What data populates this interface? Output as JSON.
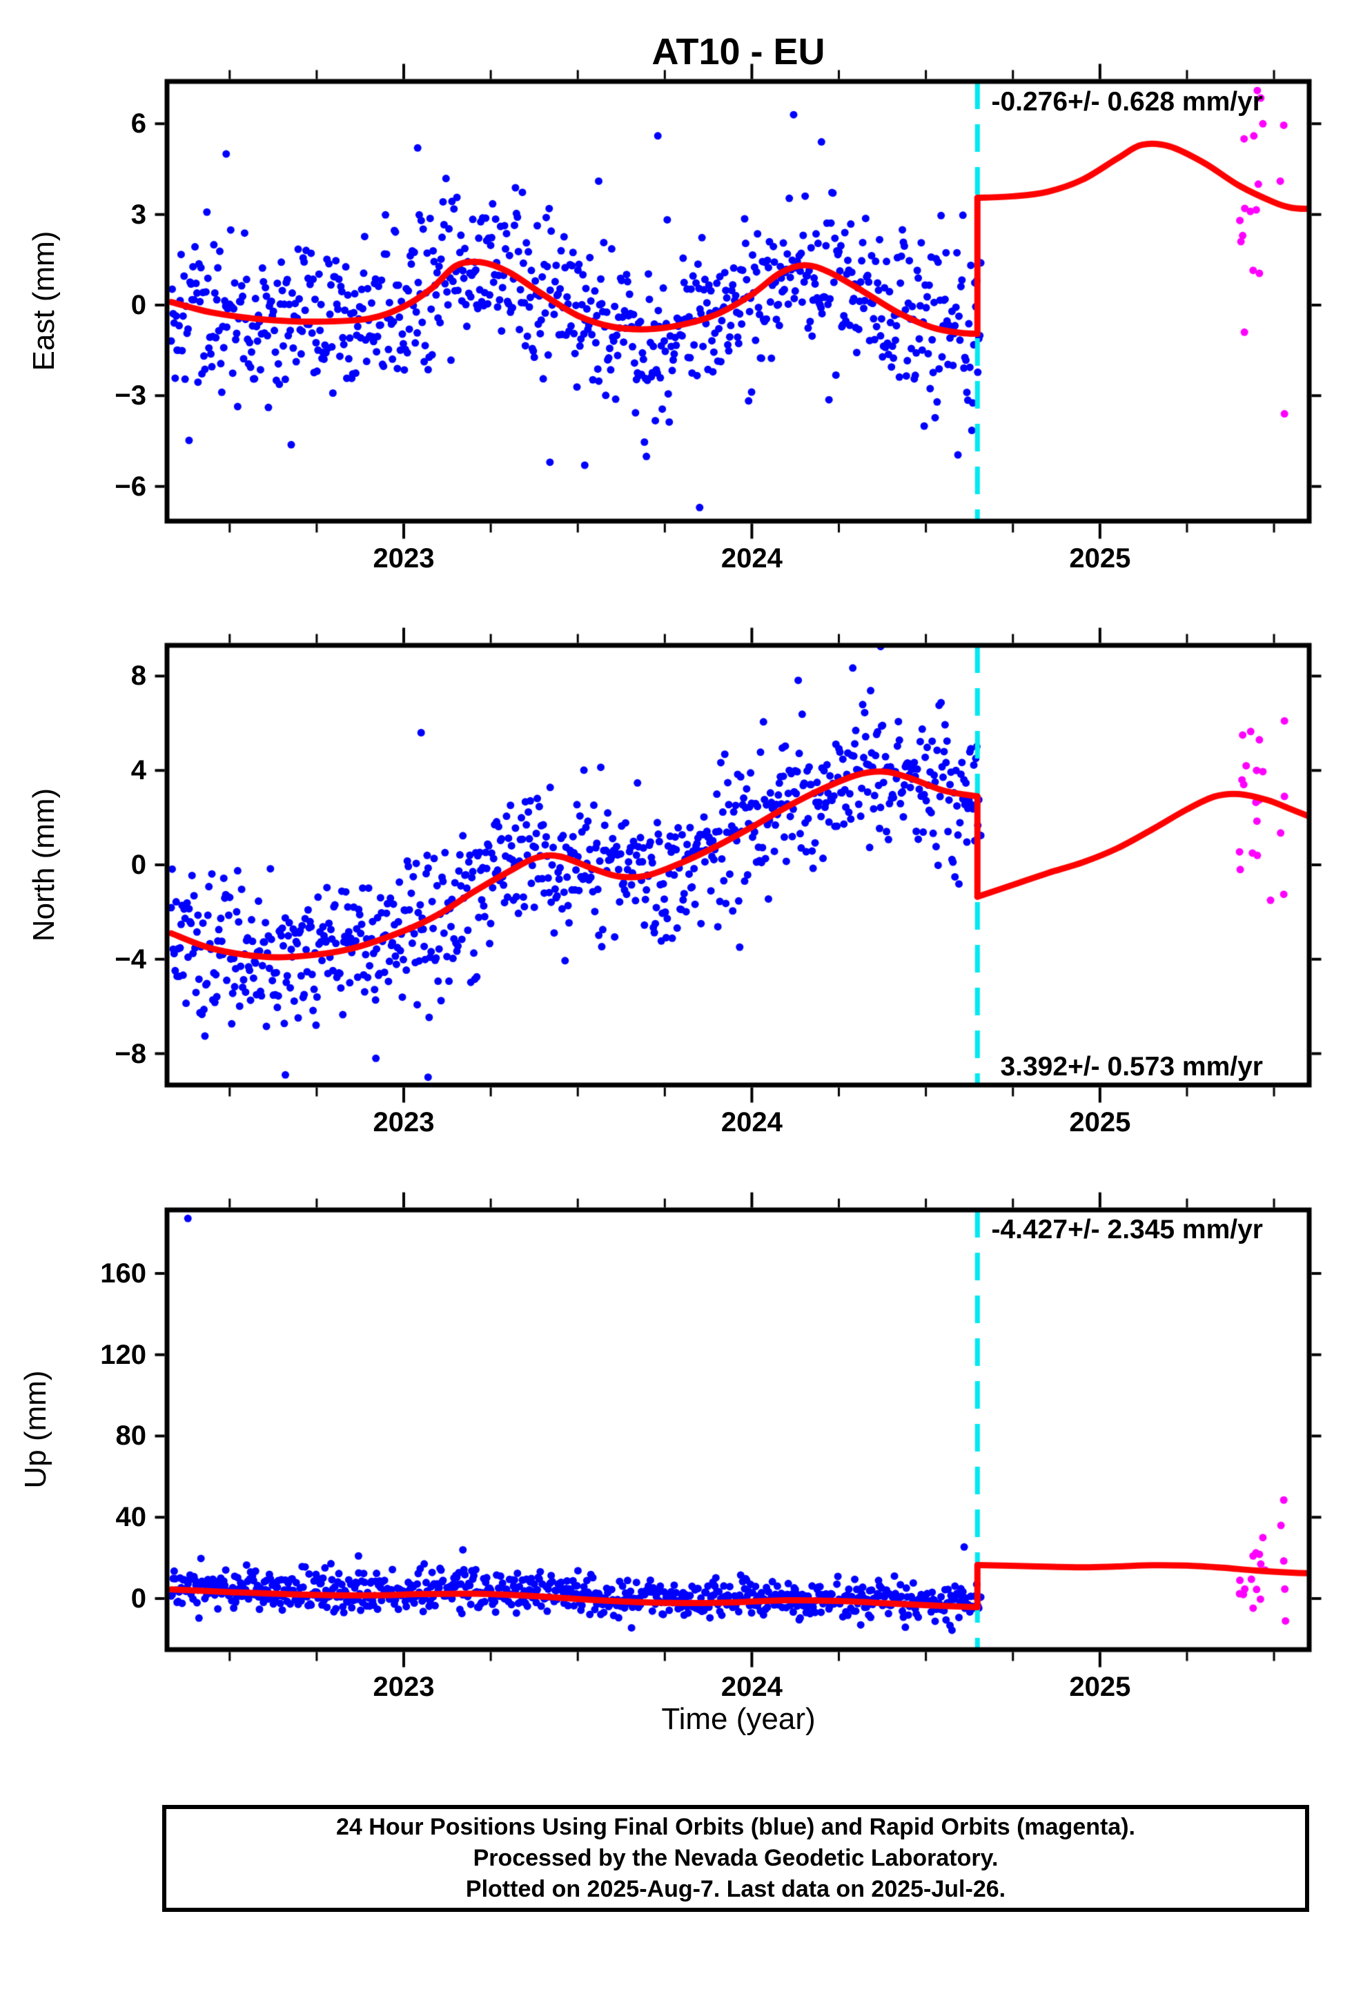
{
  "colors": {
    "final_orbit": "#0000ff",
    "rapid_orbit": "#ff00ff",
    "model_fit": "#ff0000",
    "event_line": "#00e8f0",
    "frame": "#000000",
    "background": "#ffffff"
  },
  "caption": {
    "lines": [
      "24 Hour Positions Using Final Orbits (blue) and Rapid Orbits (magenta).",
      "Processed by the Nevada Geodetic Laboratory.",
      "Plotted on 2025-Aug-7. Last data on 2025-Jul-26."
    ]
  },
  "chart_data": {
    "type": "scatter",
    "title": "AT10 - EU",
    "x": {
      "label": "Time (year)",
      "lim": [
        2022.32,
        2025.601
      ],
      "ticks": [
        {
          "v": 2023,
          "label": "2023"
        },
        {
          "v": 2024,
          "label": "2024"
        },
        {
          "v": 2025,
          "label": "2025"
        }
      ],
      "minor_tick_step": 0.25
    },
    "event_line_x": 2024.648,
    "legend": {
      "final_orbits": "blue",
      "rapid_orbits": "magenta"
    },
    "panels": [
      {
        "id": "east",
        "ylabel": "East (mm)",
        "ylim": [
          -7.15,
          7.4
        ],
        "yticks": [
          {
            "v": 6,
            "label": "6"
          },
          {
            "v": 3,
            "label": "3"
          },
          {
            "v": 0,
            "label": "0"
          },
          {
            "v": -3,
            "label": "−3"
          },
          {
            "v": -6,
            "label": "−6"
          }
        ],
        "annotation": {
          "text": "-0.276+/- 0.628 mm/yr",
          "corner": "top-right"
        },
        "velocity_mm_per_yr": -0.276,
        "velocity_sigma": 0.628,
        "model_pre": [
          [
            2022.332,
            0.1
          ],
          [
            2022.45,
            -0.25
          ],
          [
            2022.6,
            -0.48
          ],
          [
            2022.75,
            -0.55
          ],
          [
            2022.9,
            -0.45
          ],
          [
            2023.0,
            -0.05
          ],
          [
            2023.08,
            0.55
          ],
          [
            2023.15,
            1.3
          ],
          [
            2023.22,
            1.42
          ],
          [
            2023.3,
            1.1
          ],
          [
            2023.4,
            0.35
          ],
          [
            2023.5,
            -0.35
          ],
          [
            2023.6,
            -0.72
          ],
          [
            2023.7,
            -0.8
          ],
          [
            2023.8,
            -0.65
          ],
          [
            2023.9,
            -0.3
          ],
          [
            2024.0,
            0.35
          ],
          [
            2024.08,
            1.05
          ],
          [
            2024.15,
            1.32
          ],
          [
            2024.22,
            1.1
          ],
          [
            2024.32,
            0.45
          ],
          [
            2024.42,
            -0.25
          ],
          [
            2024.52,
            -0.75
          ],
          [
            2024.6,
            -0.92
          ],
          [
            2024.648,
            -0.95
          ]
        ],
        "model_post": [
          [
            2024.648,
            3.55
          ],
          [
            2024.75,
            3.6
          ],
          [
            2024.85,
            3.75
          ],
          [
            2024.95,
            4.15
          ],
          [
            2025.05,
            4.85
          ],
          [
            2025.12,
            5.3
          ],
          [
            2025.2,
            5.25
          ],
          [
            2025.3,
            4.7
          ],
          [
            2025.4,
            3.95
          ],
          [
            2025.5,
            3.4
          ],
          [
            2025.55,
            3.22
          ],
          [
            2025.601,
            3.18
          ]
        ],
        "scatter": {
          "seed": 42,
          "sigma": 1.35,
          "mean_offset": 0,
          "t_start": 2022.332,
          "t_end": 2024.66,
          "step": 0.00285
        },
        "outliers": [
          [
            2022.49,
            5.0
          ],
          [
            2023.04,
            5.2
          ],
          [
            2023.56,
            4.1
          ],
          [
            2023.73,
            5.6
          ],
          [
            2024.12,
            6.3
          ],
          [
            2024.2,
            5.4
          ],
          [
            2023.42,
            -5.2
          ],
          [
            2023.52,
            -5.3
          ],
          [
            2023.85,
            -6.7
          ]
        ],
        "rapid": [
          [
            2025.452,
            7.1
          ],
          [
            2025.462,
            6.85
          ],
          [
            2025.468,
            6.0
          ],
          [
            2025.442,
            5.6
          ],
          [
            2025.414,
            5.5
          ],
          [
            2025.528,
            5.95
          ],
          [
            2025.455,
            4.0
          ],
          [
            2025.518,
            4.1
          ],
          [
            2025.416,
            3.2
          ],
          [
            2025.432,
            3.1
          ],
          [
            2025.449,
            3.15
          ],
          [
            2025.402,
            2.8
          ],
          [
            2025.41,
            2.3
          ],
          [
            2025.405,
            2.1
          ],
          [
            2025.44,
            1.15
          ],
          [
            2025.458,
            1.05
          ],
          [
            2025.415,
            -0.9
          ],
          [
            2025.53,
            -3.6
          ]
        ]
      },
      {
        "id": "north",
        "ylabel": "North (mm)",
        "ylim": [
          -9.33,
          9.3
        ],
        "yticks": [
          {
            "v": 8,
            "label": "8"
          },
          {
            "v": 4,
            "label": "4"
          },
          {
            "v": 0,
            "label": "0"
          },
          {
            "v": -4,
            "label": "−4"
          },
          {
            "v": -8,
            "label": "−8"
          }
        ],
        "annotation": {
          "text": "3.392+/- 0.573 mm/yr",
          "corner": "bottom-right"
        },
        "velocity_mm_per_yr": 3.392,
        "velocity_sigma": 0.573,
        "model_pre": [
          [
            2022.332,
            -2.9
          ],
          [
            2022.45,
            -3.55
          ],
          [
            2022.6,
            -3.9
          ],
          [
            2022.72,
            -3.85
          ],
          [
            2022.85,
            -3.55
          ],
          [
            2023.0,
            -2.8
          ],
          [
            2023.1,
            -2.1
          ],
          [
            2023.2,
            -1.15
          ],
          [
            2023.3,
            -0.3
          ],
          [
            2023.38,
            0.3
          ],
          [
            2023.45,
            0.35
          ],
          [
            2023.55,
            -0.2
          ],
          [
            2023.62,
            -0.5
          ],
          [
            2023.7,
            -0.45
          ],
          [
            2023.8,
            0.1
          ],
          [
            2023.9,
            0.8
          ],
          [
            2024.0,
            1.6
          ],
          [
            2024.1,
            2.45
          ],
          [
            2024.2,
            3.2
          ],
          [
            2024.3,
            3.8
          ],
          [
            2024.38,
            3.95
          ],
          [
            2024.45,
            3.7
          ],
          [
            2024.55,
            3.15
          ],
          [
            2024.648,
            2.9
          ]
        ],
        "model_post": [
          [
            2024.648,
            -1.35
          ],
          [
            2024.75,
            -0.85
          ],
          [
            2024.85,
            -0.35
          ],
          [
            2024.95,
            0.1
          ],
          [
            2025.05,
            0.7
          ],
          [
            2025.15,
            1.5
          ],
          [
            2025.25,
            2.35
          ],
          [
            2025.33,
            2.9
          ],
          [
            2025.4,
            3.0
          ],
          [
            2025.48,
            2.75
          ],
          [
            2025.55,
            2.35
          ],
          [
            2025.601,
            2.05
          ]
        ],
        "scatter": {
          "seed": 1337,
          "sigma": 1.6,
          "mean_offset": 0,
          "t_start": 2022.332,
          "t_end": 2024.66,
          "step": 0.00285
        },
        "outliers": [
          [
            2023.05,
            5.6
          ],
          [
            2024.37,
            9.25
          ],
          [
            2022.92,
            -8.2
          ],
          [
            2022.66,
            -8.9
          ],
          [
            2023.07,
            -9.0
          ]
        ],
        "rapid": [
          [
            2025.53,
            6.1
          ],
          [
            2025.41,
            5.5
          ],
          [
            2025.433,
            5.65
          ],
          [
            2025.458,
            5.3
          ],
          [
            2025.42,
            4.2
          ],
          [
            2025.45,
            4.0
          ],
          [
            2025.468,
            3.95
          ],
          [
            2025.408,
            3.6
          ],
          [
            2025.413,
            3.4
          ],
          [
            2025.458,
            2.75
          ],
          [
            2025.53,
            2.9
          ],
          [
            2025.448,
            2.65
          ],
          [
            2025.451,
            1.85
          ],
          [
            2025.519,
            1.35
          ],
          [
            2025.401,
            0.55
          ],
          [
            2025.438,
            0.5
          ],
          [
            2025.452,
            0.4
          ],
          [
            2025.403,
            -0.2
          ],
          [
            2025.528,
            -1.25
          ],
          [
            2025.49,
            -1.5
          ]
        ]
      },
      {
        "id": "up",
        "ylabel": "Up (mm)",
        "ylim": [
          -25.1,
          191.2
        ],
        "yticks": [
          {
            "v": 160,
            "label": "160"
          },
          {
            "v": 120,
            "label": "120"
          },
          {
            "v": 80,
            "label": "80"
          },
          {
            "v": 40,
            "label": "40"
          },
          {
            "v": 0,
            "label": "0"
          }
        ],
        "annotation": {
          "text": "-4.427+/- 2.345 mm/yr",
          "corner": "top-right"
        },
        "velocity_mm_per_yr": -4.427,
        "velocity_sigma": 2.345,
        "model_pre": [
          [
            2022.332,
            4.5
          ],
          [
            2022.5,
            3.2
          ],
          [
            2022.7,
            2.0
          ],
          [
            2022.9,
            1.6
          ],
          [
            2023.05,
            2.2
          ],
          [
            2023.2,
            2.4
          ],
          [
            2023.35,
            1.5
          ],
          [
            2023.5,
            -0.2
          ],
          [
            2023.65,
            -1.6
          ],
          [
            2023.8,
            -2.2
          ],
          [
            2023.95,
            -1.8
          ],
          [
            2024.1,
            -0.8
          ],
          [
            2024.25,
            -1.2
          ],
          [
            2024.4,
            -2.4
          ],
          [
            2024.55,
            -3.6
          ],
          [
            2024.648,
            -4.2
          ]
        ],
        "model_post": [
          [
            2024.648,
            16.5
          ],
          [
            2024.8,
            15.9
          ],
          [
            2024.95,
            15.4
          ],
          [
            2025.05,
            15.8
          ],
          [
            2025.15,
            16.4
          ],
          [
            2025.25,
            16.2
          ],
          [
            2025.35,
            15.2
          ],
          [
            2025.45,
            13.8
          ],
          [
            2025.55,
            12.8
          ],
          [
            2025.601,
            12.5
          ]
        ],
        "scatter": {
          "seed": 2025,
          "sigma": 4.8,
          "mean_offset": 1.5,
          "t_start": 2022.332,
          "t_end": 2024.66,
          "step": 0.00285
        },
        "outliers": [
          [
            2022.38,
            187
          ],
          [
            2024.61,
            25.4
          ],
          [
            2022.87,
            21
          ],
          [
            2023.17,
            24
          ]
        ],
        "rapid": [
          [
            2025.528,
            48.5
          ],
          [
            2025.52,
            36
          ],
          [
            2025.468,
            30
          ],
          [
            2025.448,
            22.5
          ],
          [
            2025.458,
            21.8
          ],
          [
            2025.44,
            21
          ],
          [
            2025.462,
            17
          ],
          [
            2025.528,
            18.5
          ],
          [
            2025.475,
            14
          ],
          [
            2025.435,
            9.5
          ],
          [
            2025.402,
            9
          ],
          [
            2025.416,
            4.7
          ],
          [
            2025.401,
            2.4
          ],
          [
            2025.412,
            2.0
          ],
          [
            2025.45,
            4.5
          ],
          [
            2025.461,
            -0.3
          ],
          [
            2025.531,
            4.7
          ],
          [
            2025.44,
            -4.7
          ],
          [
            2025.533,
            -11
          ]
        ]
      }
    ]
  }
}
